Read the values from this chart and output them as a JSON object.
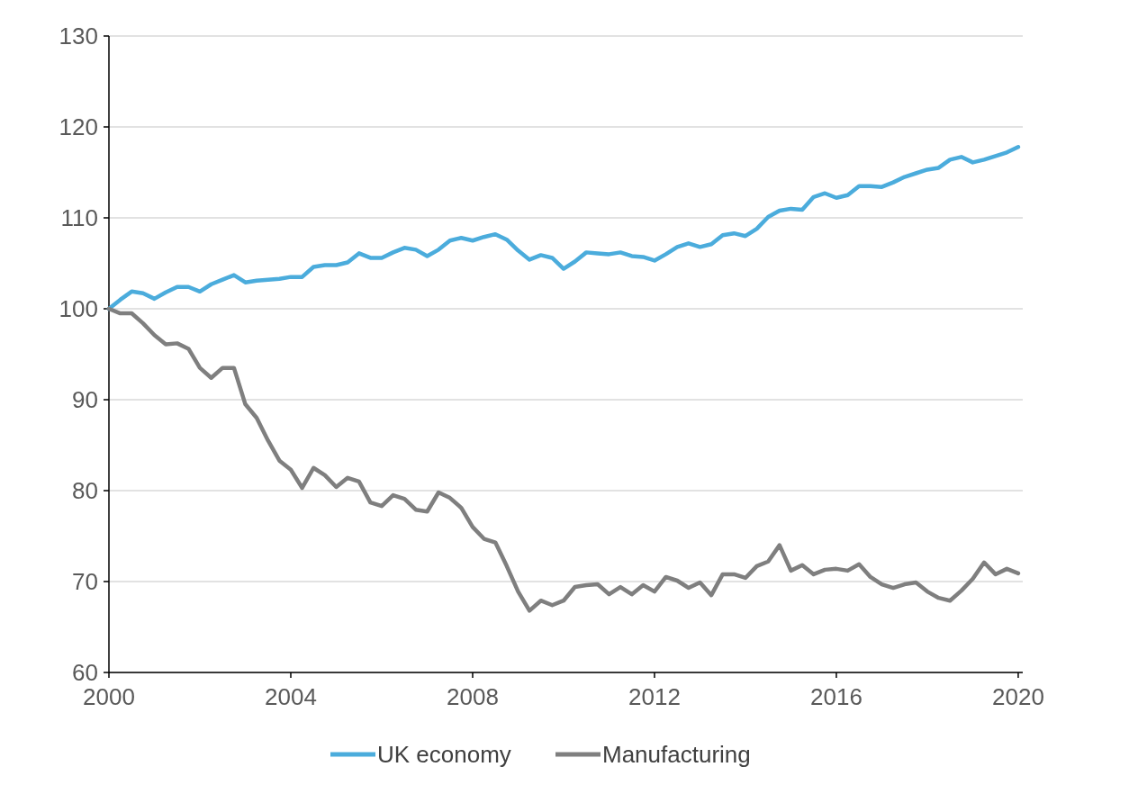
{
  "chart_data": {
    "type": "line",
    "x": [
      2000,
      2000.25,
      2000.5,
      2000.75,
      2001,
      2001.25,
      2001.5,
      2001.75,
      2002,
      2002.25,
      2002.5,
      2002.75,
      2003,
      2003.25,
      2003.5,
      2003.75,
      2004,
      2004.25,
      2004.5,
      2004.75,
      2005,
      2005.25,
      2005.5,
      2005.75,
      2006,
      2006.25,
      2006.5,
      2006.75,
      2007,
      2007.25,
      2007.5,
      2007.75,
      2008,
      2008.25,
      2008.5,
      2008.75,
      2009,
      2009.25,
      2009.5,
      2009.75,
      2010,
      2010.25,
      2010.5,
      2010.75,
      2011,
      2011.25,
      2011.5,
      2011.75,
      2012,
      2012.25,
      2012.5,
      2012.75,
      2013,
      2013.25,
      2013.5,
      2013.75,
      2014,
      2014.25,
      2014.5,
      2014.75,
      2015,
      2015.25,
      2015.5,
      2015.75,
      2016,
      2016.25,
      2016.5,
      2016.75,
      2017,
      2017.25,
      2017.5,
      2017.75,
      2018,
      2018.25,
      2018.5,
      2018.75,
      2019,
      2019.25,
      2019.5,
      2019.75,
      2020
    ],
    "series": [
      {
        "name": "UK economy",
        "color": "#4bacdc",
        "values": [
          100,
          101,
          101.9,
          101.7,
          101.1,
          101.8,
          102.4,
          102.4,
          101.9,
          102.7,
          103.2,
          103.7,
          102.9,
          103.1,
          103.2,
          103.3,
          103.5,
          103.5,
          104.6,
          104.8,
          104.8,
          105.1,
          106.1,
          105.6,
          105.6,
          106.2,
          106.7,
          106.5,
          105.8,
          106.5,
          107.5,
          107.8,
          107.5,
          107.9,
          108.2,
          107.6,
          106.4,
          105.4,
          105.9,
          105.6,
          104.4,
          105.2,
          106.2,
          106.1,
          106,
          106.2,
          105.8,
          105.7,
          105.3,
          106,
          106.8,
          107.2,
          106.8,
          107.1,
          108.1,
          108.3,
          108,
          108.8,
          110.1,
          110.8,
          111,
          110.9,
          112.3,
          112.7,
          112.2,
          112.5,
          113.5,
          113.5,
          113.4,
          113.9,
          114.5,
          114.9,
          115.3,
          115.5,
          116.4,
          116.7,
          116.1,
          116.4,
          116.8,
          117.2,
          117.8
        ]
      },
      {
        "name": "Manufacturing",
        "color": "#7f7f7f",
        "values": [
          100,
          99.5,
          99.5,
          98.4,
          97.1,
          96.1,
          96.2,
          95.6,
          93.5,
          92.4,
          93.5,
          93.5,
          89.5,
          88,
          85.5,
          83.3,
          82.3,
          80.3,
          82.5,
          81.7,
          80.4,
          81.4,
          81,
          78.7,
          78.3,
          79.5,
          79.1,
          77.9,
          77.7,
          79.8,
          79.2,
          78.1,
          76,
          74.7,
          74.3,
          71.7,
          68.9,
          66.8,
          67.9,
          67.4,
          67.9,
          69.4,
          69.6,
          69.7,
          68.6,
          69.4,
          68.6,
          69.6,
          68.9,
          70.5,
          70.1,
          69.3,
          69.9,
          68.5,
          70.8,
          70.8,
          70.4,
          71.7,
          72.2,
          74,
          71.2,
          71.8,
          70.8,
          71.3,
          71.4,
          71.2,
          71.9,
          70.5,
          69.7,
          69.3,
          69.7,
          69.9,
          68.9,
          68.2,
          67.9,
          69,
          70.3,
          72.1,
          70.8,
          71.4,
          70.9
        ]
      }
    ],
    "xlim": [
      2000,
      2020.1
    ],
    "xticks": [
      2000,
      2004,
      2008,
      2012,
      2016,
      2020
    ],
    "ylim": [
      60,
      130
    ],
    "yticks": [
      60,
      70,
      80,
      90,
      100,
      110,
      120,
      130
    ],
    "grid": "y",
    "legend": "bottom",
    "marker": "none",
    "line_style": "solid"
  }
}
